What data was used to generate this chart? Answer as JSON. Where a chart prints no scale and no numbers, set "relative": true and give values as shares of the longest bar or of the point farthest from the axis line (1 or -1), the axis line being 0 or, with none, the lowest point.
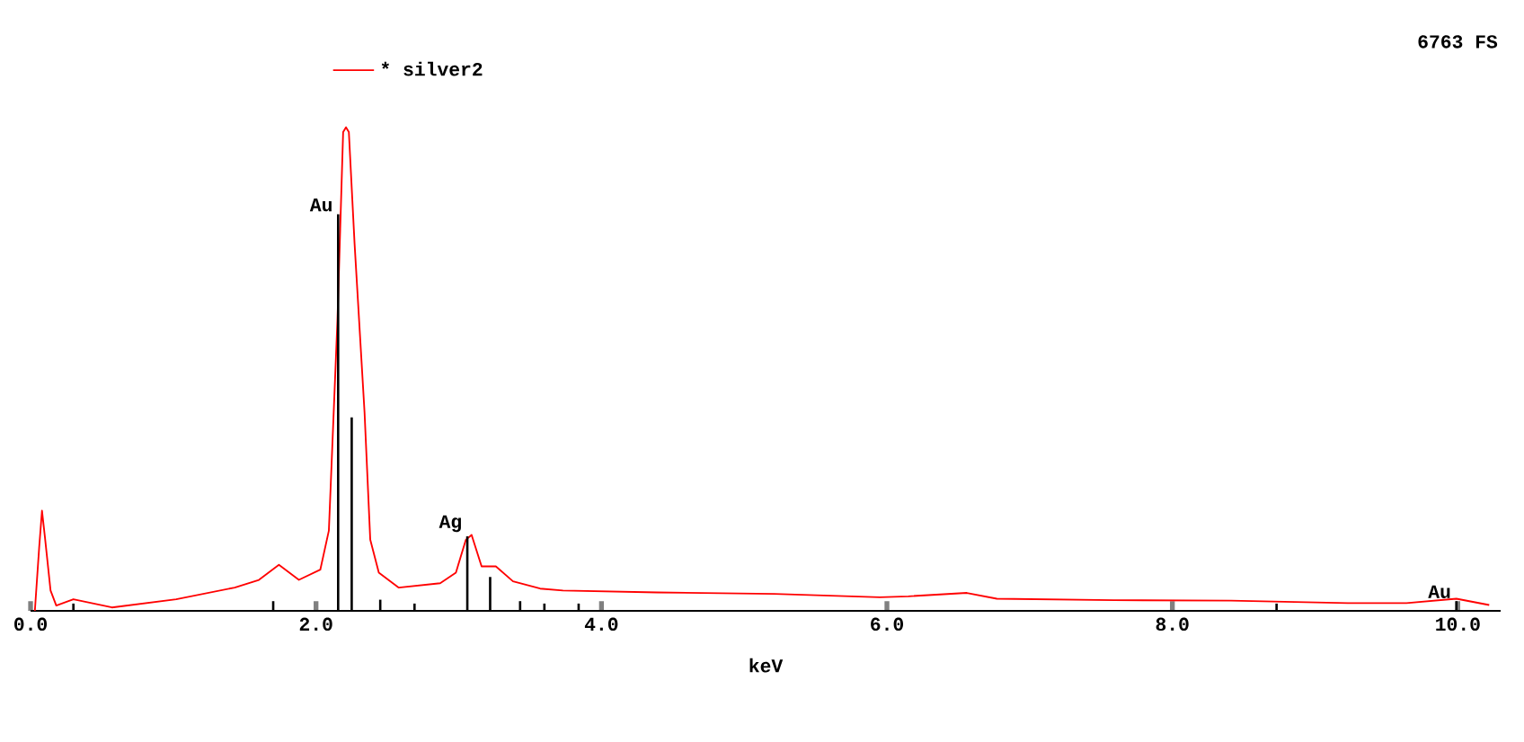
{
  "chart_data": {
    "type": "line",
    "relative": true,
    "xlabel": "keV",
    "legend": "top",
    "xlim": [
      0,
      10.3
    ],
    "xticks": [
      {
        "value": 0,
        "label": "0.0"
      },
      {
        "value": 2,
        "label": "2.0"
      },
      {
        "value": 4,
        "label": "4.0"
      },
      {
        "value": 6,
        "label": "6.0"
      },
      {
        "value": 8,
        "label": "8.0"
      },
      {
        "value": 10,
        "label": "10.0"
      }
    ],
    "series": [
      {
        "name": "* silver2",
        "color": "#ff0000",
        "x": [
          0.03,
          0.06,
          0.08,
          0.1,
          0.14,
          0.18,
          0.3,
          0.57,
          1.02,
          1.43,
          1.6,
          1.74,
          1.88,
          2.03,
          2.09,
          2.15,
          2.19,
          2.21,
          2.23,
          2.27,
          2.34,
          2.38,
          2.44,
          2.58,
          2.87,
          2.98,
          3.05,
          3.09,
          3.16,
          3.26,
          3.38,
          3.57,
          3.73,
          4.39,
          5.21,
          5.95,
          6.15,
          6.56,
          6.77,
          7.59,
          8.41,
          9.23,
          9.64,
          9.99,
          10.22
        ],
        "values": [
          0,
          0.13,
          0.207,
          0.154,
          0.042,
          0.011,
          0.024,
          0.007,
          0.024,
          0.048,
          0.064,
          0.095,
          0.064,
          0.085,
          0.166,
          0.6,
          0.99,
          1.0,
          0.99,
          0.76,
          0.41,
          0.147,
          0.079,
          0.048,
          0.057,
          0.079,
          0.147,
          0.157,
          0.092,
          0.092,
          0.061,
          0.046,
          0.042,
          0.038,
          0.035,
          0.028,
          0.03,
          0.037,
          0.025,
          0.022,
          0.021,
          0.016,
          0.016,
          0.025,
          0.012
        ]
      },
      {
        "type": "bar",
        "color": "#000000",
        "x": [
          0.3,
          1.7,
          2.155,
          2.25,
          2.45,
          2.69,
          3.06,
          3.22,
          3.43,
          3.6,
          3.84,
          8.73,
          9.99
        ],
        "values": [
          0.015,
          0.02,
          0.82,
          0.4,
          0.023,
          0.015,
          0.154,
          0.07,
          0.02,
          0.015,
          0.015,
          0.015,
          0.02
        ]
      }
    ],
    "annotations": [
      "6763 FS",
      {
        "text": "Au",
        "x": 2.155,
        "y": 0.82
      },
      {
        "text": "Ag",
        "x": 3.06,
        "y": 0.157
      },
      {
        "text": "Au",
        "x": 9.99,
        "y": 0.02
      }
    ]
  }
}
